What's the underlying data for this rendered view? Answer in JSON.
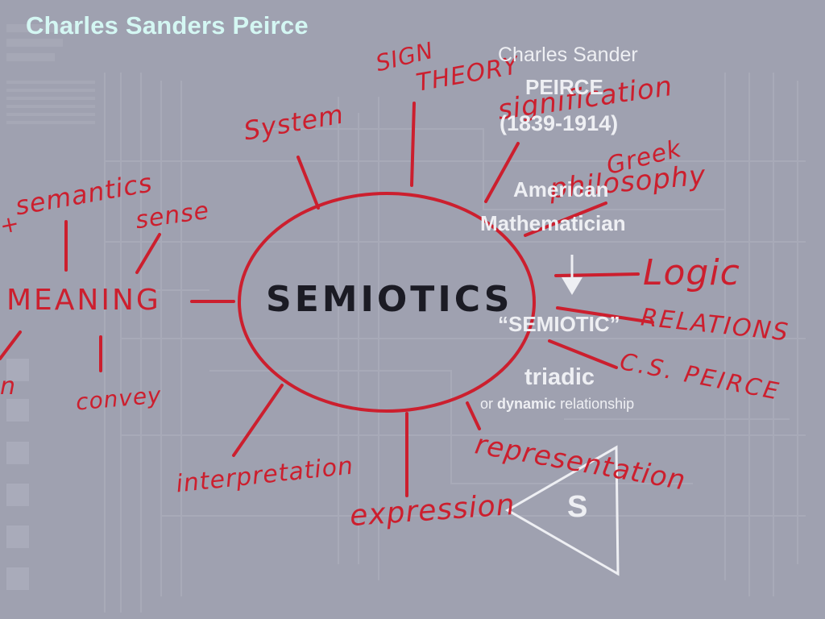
{
  "slide": {
    "title": "Charles Sanders Peirce",
    "bio": {
      "name_line": "Charles Sander",
      "surname": "PEIRCE",
      "years": "(1839-1914)",
      "nationality": "American",
      "profession": "Mathematician"
    },
    "arrow_icon": "down-arrow",
    "term": "“SEMIOTIC”",
    "relationship_keyword": "triadic",
    "relationship_pre": "or",
    "relationship_emph": "dynamic",
    "relationship_post": "relationship",
    "triangle_label": "S"
  },
  "mindmap": {
    "center": "SEMIOTICS",
    "branches": {
      "sign_theory_1": "SIGN",
      "sign_theory_2": "THEORY",
      "system": "System",
      "signification": "signification",
      "greek_1": "Greek",
      "greek_2": "philosophy",
      "logic": "Logic",
      "relations": "RELATIONS",
      "cs_peirce": "C.S. PEIRCE",
      "representation": "representation",
      "expression": "expression",
      "interpretation": "interpretation",
      "meaning": "MEANING",
      "semantics": "semantics",
      "sense": "sense",
      "convey": "convey",
      "semantics_prefix": "+",
      "cut_word": "n"
    }
  },
  "colors": {
    "background": "#9fa1b0",
    "ink_red": "#cc1f2e",
    "ink_black": "#1b1b24",
    "title_cyan": "#d4f7f3",
    "overlay_white": "#eeeff3"
  }
}
